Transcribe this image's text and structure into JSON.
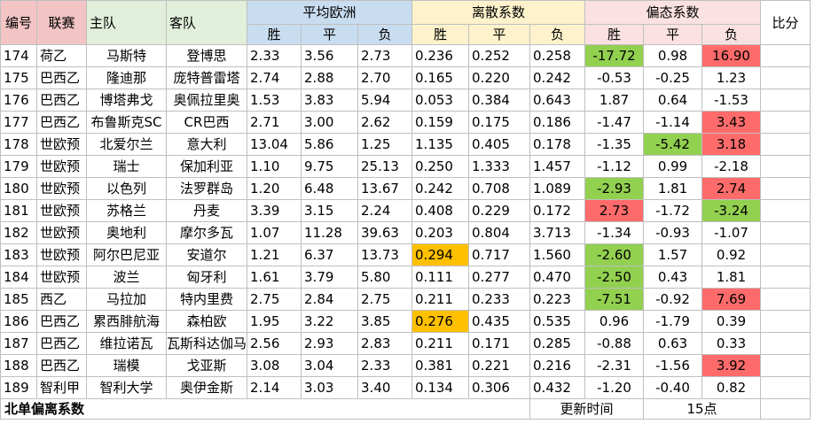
{
  "headers": {
    "no": "编号",
    "league": "联赛",
    "home": "主队",
    "away": "客队",
    "avg_group": "平均欧洲",
    "disp_group": "离散系数",
    "bias_group": "偏态系数",
    "score": "比分",
    "win": "胜",
    "draw": "平",
    "lose": "负"
  },
  "rows": [
    {
      "no": "174",
      "league": "荷乙",
      "home": "马斯特",
      "away": "登博思",
      "avg": [
        "2.33",
        "3.56",
        "2.73"
      ],
      "disp": [
        "0.236",
        "0.252",
        "0.258"
      ],
      "bias": [
        "-17.72",
        "0.98",
        "16.90"
      ]
    },
    {
      "no": "175",
      "league": "巴西乙",
      "home": "隆迪那",
      "away": "庞特普雷塔",
      "avg": [
        "2.74",
        "2.88",
        "2.70"
      ],
      "disp": [
        "0.165",
        "0.220",
        "0.242"
      ],
      "bias": [
        "-0.53",
        "-0.25",
        "1.23"
      ]
    },
    {
      "no": "176",
      "league": "巴西乙",
      "home": "博塔弗戈",
      "away": "奥佩拉里奥",
      "avg": [
        "1.53",
        "3.83",
        "5.94"
      ],
      "disp": [
        "0.053",
        "0.384",
        "0.643"
      ],
      "bias": [
        "1.87",
        "0.64",
        "-1.53"
      ]
    },
    {
      "no": "177",
      "league": "巴西乙",
      "home": "布鲁斯克SC",
      "away": "CR巴西",
      "avg": [
        "2.71",
        "3.00",
        "2.62"
      ],
      "disp": [
        "0.159",
        "0.175",
        "0.186"
      ],
      "bias": [
        "-1.47",
        "-1.14",
        "3.43"
      ]
    },
    {
      "no": "178",
      "league": "世欧预",
      "home": "北爱尔兰",
      "away": "意大利",
      "avg": [
        "13.04",
        "5.86",
        "1.25"
      ],
      "disp": [
        "1.135",
        "0.405",
        "0.178"
      ],
      "bias": [
        "-1.35",
        "-5.42",
        "3.18"
      ]
    },
    {
      "no": "179",
      "league": "世欧预",
      "home": "瑞士",
      "away": "保加利亚",
      "avg": [
        "1.10",
        "9.75",
        "25.13"
      ],
      "disp": [
        "0.250",
        "1.333",
        "1.457"
      ],
      "bias": [
        "-1.12",
        "0.99",
        "-2.18"
      ]
    },
    {
      "no": "180",
      "league": "世欧预",
      "home": "以色列",
      "away": "法罗群岛",
      "avg": [
        "1.20",
        "6.48",
        "13.67"
      ],
      "disp": [
        "0.242",
        "0.708",
        "1.089"
      ],
      "bias": [
        "-2.93",
        "1.81",
        "2.74"
      ]
    },
    {
      "no": "181",
      "league": "世欧预",
      "home": "苏格兰",
      "away": "丹麦",
      "avg": [
        "3.39",
        "3.15",
        "2.24"
      ],
      "disp": [
        "0.408",
        "0.229",
        "0.172"
      ],
      "bias": [
        "2.73",
        "-1.72",
        "-3.24"
      ]
    },
    {
      "no": "182",
      "league": "世欧预",
      "home": "奥地利",
      "away": "摩尔多瓦",
      "avg": [
        "1.07",
        "11.28",
        "39.63"
      ],
      "disp": [
        "0.203",
        "0.804",
        "3.713"
      ],
      "bias": [
        "-1.34",
        "-0.93",
        "-1.07"
      ]
    },
    {
      "no": "183",
      "league": "世欧预",
      "home": "阿尔巴尼亚",
      "away": "安道尔",
      "avg": [
        "1.21",
        "6.37",
        "13.73"
      ],
      "disp": [
        "0.294",
        "0.717",
        "1.560"
      ],
      "bias": [
        "-2.60",
        "1.57",
        "0.92"
      ]
    },
    {
      "no": "184",
      "league": "世欧预",
      "home": "波兰",
      "away": "匈牙利",
      "avg": [
        "1.61",
        "3.79",
        "5.80"
      ],
      "disp": [
        "0.111",
        "0.277",
        "0.470"
      ],
      "bias": [
        "-2.50",
        "0.43",
        "1.81"
      ]
    },
    {
      "no": "185",
      "league": "西乙",
      "home": "马拉加",
      "away": "特内里费",
      "avg": [
        "2.75",
        "2.84",
        "2.75"
      ],
      "disp": [
        "0.211",
        "0.233",
        "0.223"
      ],
      "bias": [
        "-7.51",
        "-0.92",
        "7.69"
      ]
    },
    {
      "no": "186",
      "league": "巴西乙",
      "home": "累西腓航海",
      "away": "森柏欧",
      "avg": [
        "1.95",
        "3.22",
        "3.85"
      ],
      "disp": [
        "0.276",
        "0.435",
        "0.535"
      ],
      "bias": [
        "0.96",
        "-1.79",
        "0.39"
      ]
    },
    {
      "no": "187",
      "league": "巴西乙",
      "home": "维拉诺瓦",
      "away": "瓦斯科达伽马",
      "avg": [
        "2.56",
        "2.93",
        "2.83"
      ],
      "disp": [
        "0.211",
        "0.171",
        "0.285"
      ],
      "bias": [
        "-0.88",
        "0.63",
        "0.33"
      ]
    },
    {
      "no": "188",
      "league": "巴西乙",
      "home": "瑞模",
      "away": "戈亚斯",
      "avg": [
        "3.08",
        "3.04",
        "2.33"
      ],
      "disp": [
        "0.381",
        "0.221",
        "0.216"
      ],
      "bias": [
        "-2.31",
        "-1.56",
        "3.92"
      ]
    },
    {
      "no": "189",
      "league": "智利甲",
      "home": "智利大学",
      "away": "奥伊金斯",
      "avg": [
        "2.14",
        "3.03",
        "3.40"
      ],
      "disp": [
        "0.134",
        "0.306",
        "0.432"
      ],
      "bias": [
        "-1.20",
        "-0.40",
        "0.82"
      ]
    }
  ],
  "highlights": {
    "green": "#92d050",
    "red": "#ff6b6b",
    "orange": "#ffc000"
  },
  "footer": {
    "title": "北单偏离系数",
    "update_label": "更新时间",
    "update_value": "15点"
  }
}
